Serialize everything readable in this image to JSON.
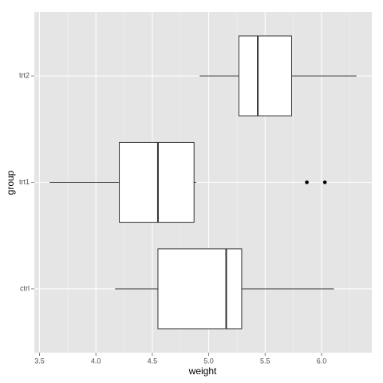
{
  "chart_data": {
    "type": "boxplot",
    "orientation": "horizontal",
    "x_label": "weight",
    "y_label": "group",
    "categories": [
      "ctrl",
      "trt1",
      "trt2"
    ],
    "stats": {
      "min": [
        4.17,
        3.59,
        4.92
      ],
      "q1": [
        4.55,
        4.2075,
        5.2675
      ],
      "median": [
        5.155,
        4.55,
        5.435
      ],
      "q3": [
        5.2925,
        4.87,
        5.735
      ],
      "max": [
        6.11,
        4.89,
        6.31
      ]
    },
    "outliers": [
      [],
      [
        5.87,
        6.03
      ],
      []
    ],
    "box_fill": "#ffffff",
    "box_stroke": "#333333",
    "outlier_color": "#000000",
    "xlim": [
      3.454,
      6.446
    ],
    "xticks": [
      {
        "value": 3.5,
        "label": "3.5"
      },
      {
        "value": 4,
        "label": "4.0"
      },
      {
        "value": 4.5,
        "label": "4.5"
      },
      {
        "value": 5,
        "label": "5.0"
      },
      {
        "value": 5.5,
        "label": "5.5"
      },
      {
        "value": 6,
        "label": "6.0"
      }
    ],
    "xminor": [
      3.75,
      4.25,
      4.75,
      5.25,
      5.75,
      6.25
    ],
    "grid": true
  }
}
